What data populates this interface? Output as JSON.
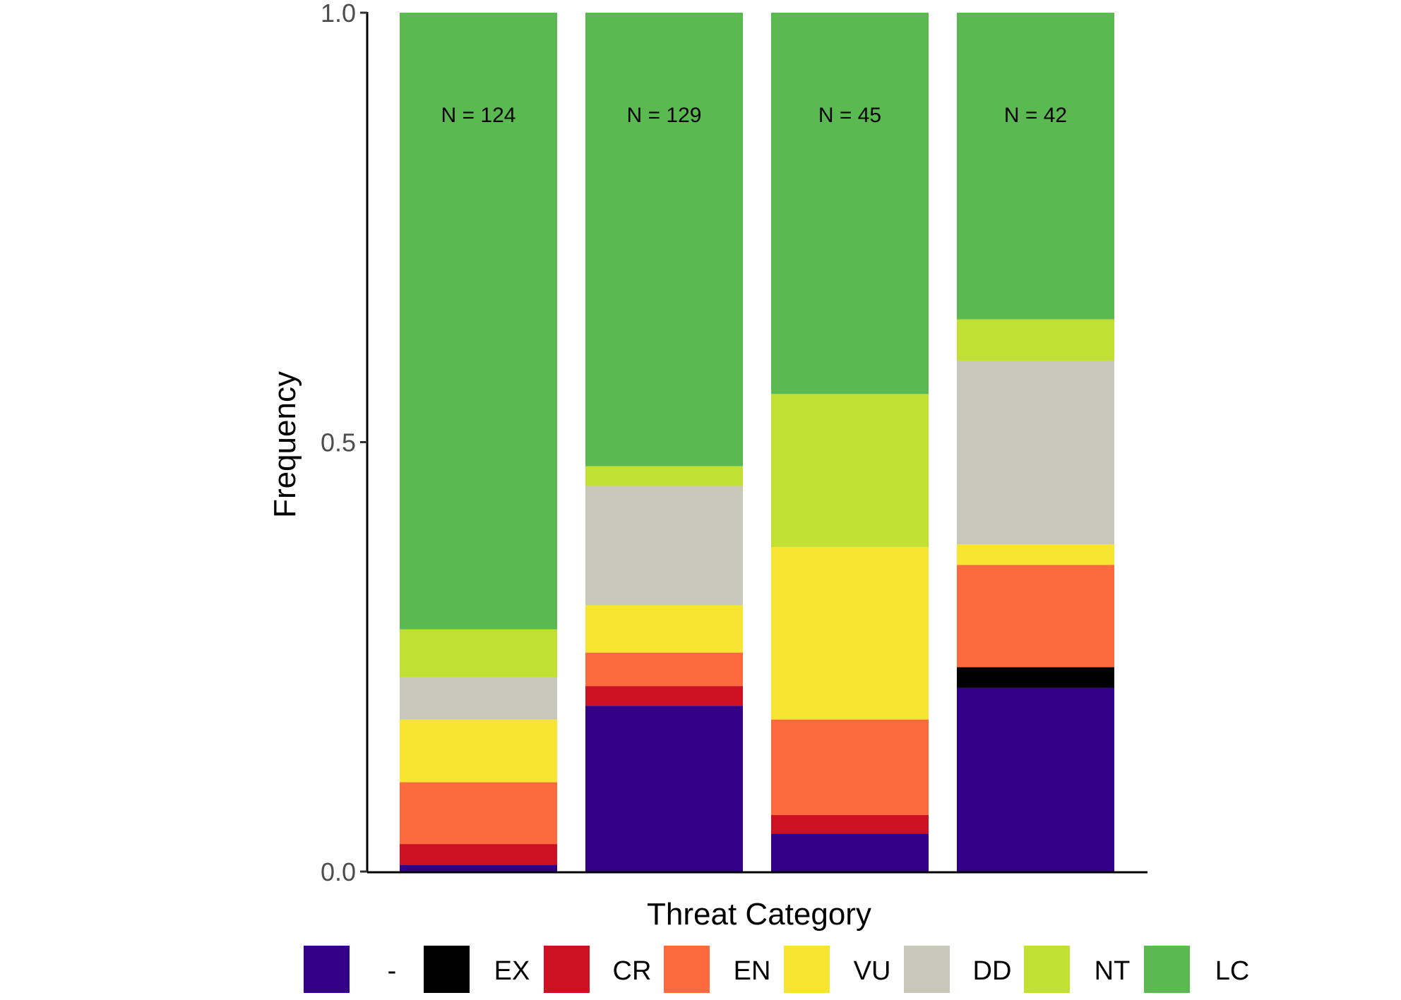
{
  "chart_data": {
    "type": "bar",
    "stacked": true,
    "orientation": "vertical",
    "title": "",
    "xlabel": "Threat Category",
    "ylabel": "Frequency",
    "ylim": [
      0,
      1
    ],
    "y_ticks": [
      "0.0",
      "0.5",
      "1.0"
    ],
    "y_tick_values": [
      0,
      0.5,
      1.0
    ],
    "grid": false,
    "legend_position": "bottom",
    "categories": [
      "",
      "",
      "",
      ""
    ],
    "bar_annotations": [
      "N = 124",
      "N = 129",
      "N = 45",
      "N = 42"
    ],
    "series": [
      {
        "name": "-",
        "color": "#330088",
        "values": [
          0.008,
          0.193,
          0.044,
          0.214
        ]
      },
      {
        "name": "EX",
        "color": "#000000",
        "values": [
          0.0,
          0.0,
          0.0,
          0.024
        ]
      },
      {
        "name": "CR",
        "color": "#cc1122",
        "values": [
          0.024,
          0.023,
          0.022,
          0.0
        ]
      },
      {
        "name": "EN",
        "color": "#fc6a3e",
        "values": [
          0.072,
          0.039,
          0.111,
          0.119
        ]
      },
      {
        "name": "VU",
        "color": "#f8e432",
        "values": [
          0.073,
          0.055,
          0.201,
          0.024
        ]
      },
      {
        "name": "DD",
        "color": "#c8c8ba",
        "values": [
          0.049,
          0.139,
          0.0,
          0.214
        ]
      },
      {
        "name": "NT",
        "color": "#c2e034",
        "values": [
          0.056,
          0.023,
          0.178,
          0.048
        ]
      },
      {
        "name": "LC",
        "color": "#5bb952",
        "values": [
          0.718,
          0.528,
          0.444,
          0.357
        ]
      }
    ]
  }
}
